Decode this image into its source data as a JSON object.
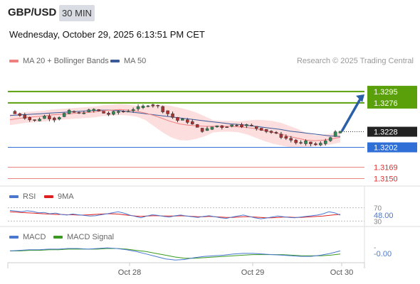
{
  "header": {
    "pair": "GBP/USD",
    "timeframe": "30 MIN"
  },
  "datetime": "Wednesday, October 29, 2025 6:13:51 PM CET",
  "legend": {
    "ma20": {
      "label": "MA 20 + Bollinger Bands",
      "color": "#f08080"
    },
    "ma50": {
      "label": "MA 50",
      "color": "#3a5a9a"
    }
  },
  "credit": "Research © 2025 Trading Central",
  "rsi_legend": {
    "rsi": "RSI",
    "ma": "9MA"
  },
  "macd_legend": {
    "macd": "MACD",
    "signal": "MACD Signal"
  },
  "chart_data": {
    "type": "candlestick",
    "instrument": "GBP/USD",
    "timeframe": "30 MIN",
    "x_ticks": [
      "Oct 28",
      "Oct 29",
      "Oct 30"
    ],
    "ylim": [
      1.314,
      1.3335
    ],
    "price_path": [
      1.3262,
      1.3258,
      1.3256,
      1.3252,
      1.3248,
      1.3246,
      1.325,
      1.3254,
      1.3251,
      1.3249,
      1.3253,
      1.3258,
      1.3262,
      1.326,
      1.3258,
      1.3261,
      1.3263,
      1.3265,
      1.3262,
      1.3259,
      1.3257,
      1.326,
      1.3262,
      1.3261,
      1.3263,
      1.3266,
      1.3268,
      1.327,
      1.3273,
      1.3272,
      1.327,
      1.3263,
      1.3258,
      1.3252,
      1.3247,
      1.3248,
      1.3245,
      1.324,
      1.3234,
      1.323,
      1.3232,
      1.3236,
      1.3238,
      1.3236,
      1.3237,
      1.3239,
      1.324,
      1.3238,
      1.3239,
      1.3237,
      1.3234,
      1.3232,
      1.3229,
      1.3227,
      1.3224,
      1.322,
      1.3217,
      1.3214,
      1.321,
      1.3208,
      1.3211,
      1.3208,
      1.3206,
      1.3208,
      1.3213,
      1.322,
      1.3226,
      1.3228
    ],
    "ma20_path": [
      1.3248,
      1.325,
      1.3252,
      1.3253,
      1.3254,
      1.3256,
      1.3257,
      1.3258,
      1.3259,
      1.326,
      1.3261,
      1.3263,
      1.3264,
      1.3265,
      1.3264,
      1.3262,
      1.3259,
      1.3255,
      1.325,
      1.3245,
      1.3241,
      1.3239,
      1.3238,
      1.3237,
      1.3237,
      1.3237,
      1.3237,
      1.3236,
      1.3235,
      1.3233,
      1.323,
      1.3227,
      1.3224,
      1.322,
      1.3217,
      1.3214,
      1.3213,
      1.3214,
      1.3216,
      1.3219
    ],
    "ma50_path": [
      1.3255,
      1.3256,
      1.3257,
      1.3258,
      1.3259,
      1.326,
      1.3261,
      1.3262,
      1.3263,
      1.3264,
      1.3264,
      1.3263,
      1.3261,
      1.3259,
      1.3257,
      1.3255,
      1.3253,
      1.3251,
      1.3249,
      1.3247,
      1.3245,
      1.3243,
      1.3241,
      1.324,
      1.3238,
      1.3236,
      1.3234,
      1.3232,
      1.3229,
      1.3227,
      1.3225,
      1.3223,
      1.3221,
      1.322
    ],
    "levels": [
      {
        "value": "1.3295",
        "kind": "resistance",
        "color": "#5aa00a"
      },
      {
        "value": "1.3276",
        "kind": "resistance",
        "color": "#5aa00a"
      },
      {
        "value": "1.3228",
        "kind": "current",
        "color": "#222222"
      },
      {
        "value": "1.3202",
        "kind": "pivot",
        "color": "#2f6fd6"
      },
      {
        "value": "1.3169",
        "kind": "support",
        "color": "#e03030"
      },
      {
        "value": "1.3150",
        "kind": "support",
        "color": "#e03030"
      }
    ],
    "projection": {
      "from": 1.3228,
      "to": 1.3276
    },
    "rsi": {
      "ylim": [
        20,
        80
      ],
      "ticks": [
        "70",
        "30"
      ],
      "current_label": "48.00",
      "rsi_path": [
        62,
        60,
        58,
        61,
        59,
        55,
        56,
        52,
        54,
        50,
        48,
        51,
        49,
        47,
        45,
        46,
        49,
        52,
        55,
        58,
        54,
        48,
        44,
        40,
        45,
        49,
        47,
        44,
        42,
        46,
        48,
        45,
        43,
        41,
        44,
        46,
        43,
        40,
        38,
        42,
        45,
        48,
        44,
        40,
        37,
        39,
        42,
        45,
        43,
        41,
        40,
        42,
        44,
        46,
        48,
        52,
        58,
        55,
        48
      ],
      "ma_path": [
        58,
        57,
        56,
        55,
        54,
        53,
        52,
        51,
        50,
        50,
        49,
        49,
        48,
        48,
        49,
        50,
        51,
        52,
        52,
        51,
        49,
        47,
        45,
        44,
        45,
        46,
        46,
        45,
        45,
        45,
        46,
        45,
        44,
        43,
        43,
        44,
        43,
        42,
        41,
        41,
        42,
        43,
        43,
        42,
        41,
        40,
        40,
        41,
        42,
        42,
        41,
        41,
        42,
        43,
        44,
        45,
        47,
        49,
        50
      ]
    },
    "macd": {
      "ylim": [
        -0.0016,
        0.0012
      ],
      "ticks": [
        "-"
      ],
      "current_label": "-0.00",
      "macd_path": [
        0.0001,
        0.0002,
        0.0003,
        0.0003,
        0.0004,
        0.0004,
        0.0005,
        0.0005,
        0.0004,
        0.0005,
        0.0006,
        0.0005,
        0.0003,
        0.0,
        -0.0004,
        -0.0008,
        -0.0012,
        -0.0014,
        -0.0013,
        -0.001,
        -0.0008,
        -0.0007,
        -0.0006,
        -0.0004,
        -0.0003,
        -0.0003,
        -0.0004,
        -0.0005,
        -0.0006,
        -0.0007,
        -0.0008,
        -0.0008,
        -0.0006,
        -0.0003,
        0.0001
      ],
      "signal_path": [
        0.0001,
        0.0001,
        0.0002,
        0.0002,
        0.0003,
        0.0003,
        0.0004,
        0.0004,
        0.0004,
        0.0004,
        0.0005,
        0.0005,
        0.0004,
        0.0002,
        0.0,
        -0.0003,
        -0.0006,
        -0.0009,
        -0.0011,
        -0.0011,
        -0.001,
        -0.0009,
        -0.0008,
        -0.0007,
        -0.0006,
        -0.0005,
        -0.0005,
        -0.0005,
        -0.0005,
        -0.0006,
        -0.0007,
        -0.0007,
        -0.0007,
        -0.0006,
        -0.0004
      ]
    },
    "grid": false
  }
}
